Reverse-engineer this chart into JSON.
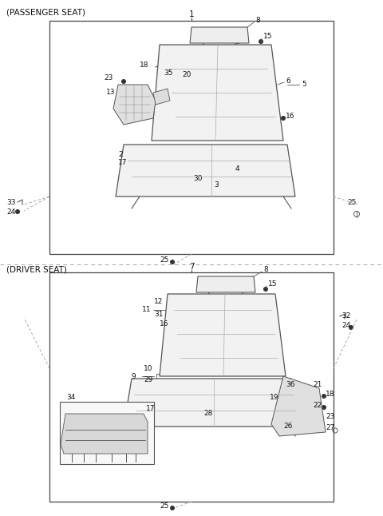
{
  "title_top": "(PASSENGER SEAT)",
  "title_bottom": "(DRIVER SEAT)",
  "bg_color": "#ffffff",
  "box_color": "#444444",
  "text_color": "#111111",
  "fig_width": 4.8,
  "fig_height": 6.46,
  "dpi": 100
}
